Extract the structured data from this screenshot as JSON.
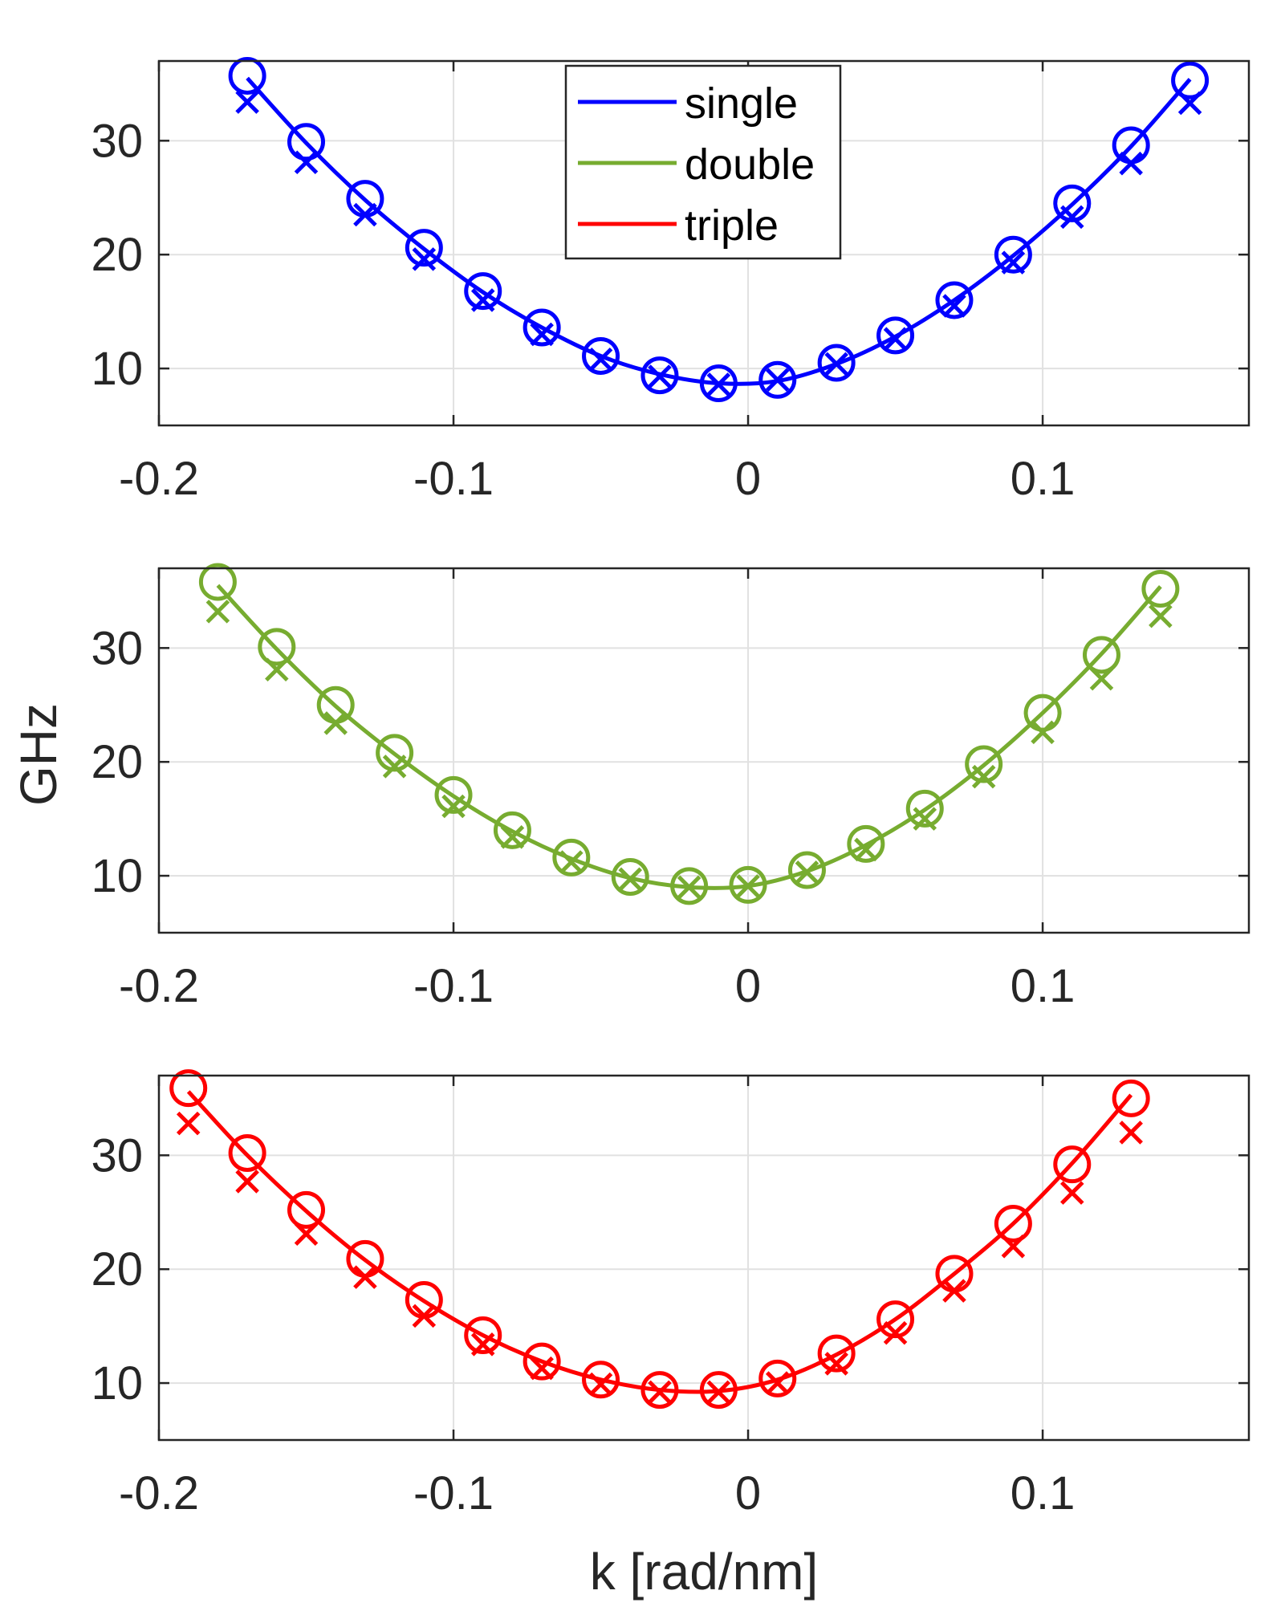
{
  "chart_data": [
    {
      "type": "line",
      "series": [
        {
          "name": "single",
          "color": "#0000ff",
          "x": [
            -0.17,
            -0.15,
            -0.13,
            -0.11,
            -0.09,
            -0.07,
            -0.05,
            -0.03,
            -0.01,
            0.01,
            0.03,
            0.05,
            0.07,
            0.09,
            0.11,
            0.13,
            0.15
          ],
          "circle": [
            35.7,
            29.9,
            24.9,
            20.6,
            16.8,
            13.6,
            11.1,
            9.4,
            8.7,
            9.0,
            10.5,
            12.9,
            16.0,
            20.0,
            24.5,
            29.6,
            35.3
          ],
          "cross": [
            33.4,
            28.1,
            23.5,
            19.6,
            16.0,
            13.0,
            10.8,
            9.3,
            8.6,
            9.0,
            10.4,
            12.6,
            15.5,
            19.3,
            23.3,
            28.0,
            33.3
          ],
          "fit": [
            35.5,
            29.8,
            24.8,
            20.5,
            16.7,
            13.6,
            11.1,
            9.5,
            8.7,
            8.9,
            10.4,
            12.8,
            16.0,
            19.9,
            24.4,
            29.5,
            35.4
          ]
        }
      ],
      "legend": [
        "single",
        "double",
        "triple"
      ],
      "xlim": [
        -0.2,
        0.17
      ],
      "ylim": [
        5,
        37
      ],
      "xticks": [
        "-0.2",
        "-0.1",
        "0",
        "0.1"
      ],
      "yticks": [
        "10",
        "20",
        "30"
      ]
    },
    {
      "type": "line",
      "series": [
        {
          "name": "double",
          "color": "#77ac30",
          "x": [
            -0.18,
            -0.16,
            -0.14,
            -0.12,
            -0.1,
            -0.08,
            -0.06,
            -0.04,
            -0.02,
            0.0,
            0.02,
            0.04,
            0.06,
            0.08,
            0.1,
            0.12,
            0.14
          ],
          "circle": [
            35.8,
            30.1,
            25.0,
            20.8,
            17.1,
            14.0,
            11.6,
            9.9,
            9.1,
            9.2,
            10.5,
            12.8,
            15.9,
            19.8,
            24.3,
            29.4,
            35.2
          ],
          "cross": [
            33.2,
            28.1,
            23.4,
            19.6,
            16.1,
            13.4,
            11.2,
            9.7,
            9.0,
            9.1,
            10.3,
            12.3,
            15.0,
            18.7,
            22.6,
            27.3,
            32.8
          ],
          "fit": [
            35.5,
            29.9,
            24.9,
            20.7,
            17.0,
            13.9,
            11.5,
            9.8,
            9.0,
            9.1,
            10.4,
            12.7,
            15.8,
            19.7,
            24.3,
            29.5,
            35.4
          ]
        }
      ],
      "xlim": [
        -0.2,
        0.17
      ],
      "ylim": [
        5,
        37
      ],
      "xticks": [
        "-0.2",
        "-0.1",
        "0",
        "0.1"
      ],
      "yticks": [
        "10",
        "20",
        "30"
      ],
      "ylabel": "GHz"
    },
    {
      "type": "line",
      "series": [
        {
          "name": "triple",
          "color": "#ff0000",
          "x": [
            -0.19,
            -0.17,
            -0.15,
            -0.13,
            -0.11,
            -0.09,
            -0.07,
            -0.05,
            -0.03,
            -0.01,
            0.01,
            0.03,
            0.05,
            0.07,
            0.09,
            0.11,
            0.13
          ],
          "circle": [
            35.9,
            30.2,
            25.2,
            20.9,
            17.3,
            14.2,
            11.9,
            10.3,
            9.4,
            9.4,
            10.4,
            12.6,
            15.6,
            19.6,
            24.0,
            29.2,
            35.0
          ],
          "cross": [
            32.8,
            27.7,
            23.1,
            19.3,
            15.9,
            13.4,
            11.3,
            9.9,
            9.2,
            9.2,
            10.0,
            11.7,
            14.4,
            18.1,
            22.0,
            26.7,
            32.0
          ],
          "fit": [
            35.6,
            30.0,
            25.1,
            20.8,
            17.2,
            14.2,
            11.9,
            10.3,
            9.4,
            9.3,
            10.3,
            12.5,
            15.6,
            19.6,
            24.0,
            29.3,
            35.3
          ]
        }
      ],
      "xlim": [
        -0.2,
        0.17
      ],
      "ylim": [
        5,
        37
      ],
      "xticks": [
        "-0.2",
        "-0.1",
        "0",
        "0.1"
      ],
      "yticks": [
        "10",
        "20",
        "30"
      ],
      "xlabel": "k [rad/nm]"
    }
  ]
}
